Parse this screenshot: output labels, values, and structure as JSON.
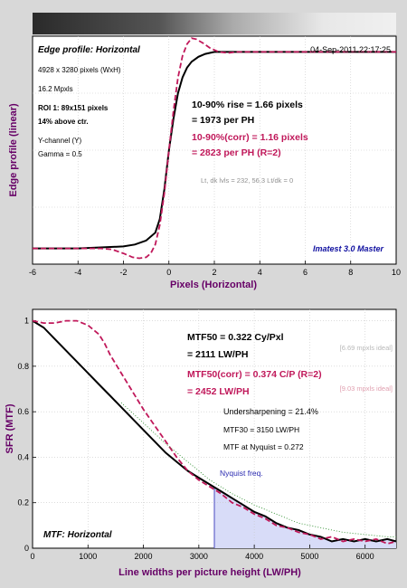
{
  "colors": {
    "background": "#d8d8d8",
    "measured": "#000000",
    "corrected": "#c0185a",
    "axis_label": "#660066",
    "nyquist_fill": "#d8dcf8",
    "nyquist_line": "#4a4ac0",
    "dotted": "#2f8f2f",
    "ideal_text": "#b8b8b8",
    "ideal_text_pink": "#e0a0b0",
    "master": "#1010a0"
  },
  "chart_data": [
    {
      "type": "line",
      "panel_title": "Edge profile: Horizontal",
      "timestamp": "04-Sep-2011 22:17:25",
      "xlabel": "Pixels (Horizontal)",
      "ylabel": "Edge profile (linear)",
      "xlim": [
        -6,
        10
      ],
      "ylim": [
        -0.08,
        1.08
      ],
      "xticks": [
        "-6",
        "-4",
        "-2",
        "0",
        "2",
        "4",
        "6",
        "8",
        "10"
      ],
      "info_lines": [
        "4928 x 3280 pixels (WxH)",
        "16.2 Mpxls"
      ],
      "roi_lines": [
        "ROI 1:  89x151 pixels",
        "14% above ctr."
      ],
      "channel_lines": [
        "Y-channel  (Y)",
        "Gamma = 0.5"
      ],
      "rise_lines": [
        "10-90% rise = 1.66 pixels",
        "= 1973 per PH"
      ],
      "corr_lines": [
        "10-90%(corr) = 1.16 pixels",
        "= 2823 per PH    (R=2)"
      ],
      "levels_text": "Lt, dk lvls = 232, 56.3   Lt/dk = 0",
      "software": "Imatest 3.0 Master",
      "series": [
        {
          "key": "measured",
          "x": [
            -6,
            -4,
            -3,
            -2,
            -1.5,
            -1,
            -0.6,
            -0.4,
            -0.2,
            0,
            0.2,
            0.4,
            0.6,
            0.8,
            1,
            1.3,
            1.6,
            2,
            2.5,
            3,
            4,
            6,
            8,
            10
          ],
          "y": [
            0,
            0,
            0.005,
            0.01,
            0.02,
            0.04,
            0.08,
            0.15,
            0.3,
            0.5,
            0.66,
            0.79,
            0.87,
            0.92,
            0.95,
            0.975,
            0.99,
            1.0,
            1.0,
            1.0,
            1.0,
            1.0,
            1.0,
            1.0
          ]
        },
        {
          "key": "corrected",
          "x": [
            -6,
            -4,
            -3,
            -2.5,
            -2,
            -1.6,
            -1.3,
            -1,
            -0.8,
            -0.6,
            -0.4,
            -0.2,
            0,
            0.2,
            0.4,
            0.6,
            0.8,
            1,
            1.2,
            1.5,
            1.8,
            2.2,
            2.6,
            3,
            4,
            6,
            8,
            10
          ],
          "y": [
            0,
            0,
            0,
            -0.005,
            -0.025,
            -0.045,
            -0.05,
            -0.045,
            -0.025,
            0.02,
            0.12,
            0.28,
            0.5,
            0.7,
            0.87,
            0.98,
            1.04,
            1.07,
            1.065,
            1.045,
            1.02,
            1.0,
            0.995,
            1.0,
            1.0,
            1.0,
            1.0,
            1.0
          ]
        }
      ]
    },
    {
      "type": "line",
      "panel_title": "MTF: Horizontal",
      "xlabel": "Line widths per picture height (LW/PH)",
      "ylabel": "SFR (MTF)",
      "xlim": [
        0,
        6560
      ],
      "ylim": [
        0,
        1.05
      ],
      "xticks": [
        "0",
        "1000",
        "2000",
        "3000",
        "4000",
        "5000",
        "6000"
      ],
      "yticks": [
        "0",
        "0.2",
        "0.4",
        "0.6",
        "0.8",
        "1"
      ],
      "mtf50_lines": [
        "MTF50 = 0.322 Cy/Pxl",
        "= 2111 LW/PH"
      ],
      "mtf50_ideal": "[6.69 mpxls ideal]",
      "mtf50corr_lines": [
        "MTF50(corr) = 0.374 C/P   (R=2)",
        "= 2452 LW/PH"
      ],
      "mtf50corr_ideal": "[9.03 mpxls ideal]",
      "undersharpening": "Undersharpening = 21.4%",
      "mtf30": "MTF30 = 3150 LW/PH",
      "nyquist_mtf": "MTF at Nyquist = 0.272",
      "nyquist_label": "Nyquist freq.",
      "nyquist_x": 3280,
      "series": [
        {
          "key": "measured",
          "x": [
            0,
            200,
            400,
            600,
            800,
            1000,
            1200,
            1400,
            1600,
            1800,
            2000,
            2200,
            2400,
            2600,
            2800,
            3000,
            3200,
            3400,
            3600,
            3800,
            4000,
            4200,
            4400,
            4600,
            4800,
            5000,
            5200,
            5400,
            5600,
            5800,
            6000,
            6200,
            6400,
            6560
          ],
          "y": [
            1.0,
            0.97,
            0.92,
            0.87,
            0.82,
            0.77,
            0.72,
            0.67,
            0.62,
            0.57,
            0.52,
            0.47,
            0.42,
            0.38,
            0.34,
            0.31,
            0.28,
            0.25,
            0.22,
            0.19,
            0.16,
            0.14,
            0.11,
            0.09,
            0.08,
            0.06,
            0.05,
            0.03,
            0.04,
            0.03,
            0.04,
            0.03,
            0.04,
            0.03
          ]
        },
        {
          "key": "corrected",
          "x": [
            0,
            200,
            400,
            600,
            800,
            1000,
            1200,
            1300,
            1400,
            1600,
            1800,
            2000,
            2200,
            2400,
            2600,
            2800,
            3000,
            3200,
            3400,
            3600,
            3800,
            4000,
            4200,
            4400,
            4600,
            4800,
            5000,
            5200,
            5400,
            5600,
            5800,
            6000,
            6200,
            6400,
            6560
          ],
          "y": [
            1.0,
            0.99,
            0.99,
            1.0,
            1.0,
            0.98,
            0.94,
            0.9,
            0.85,
            0.77,
            0.69,
            0.61,
            0.54,
            0.47,
            0.4,
            0.34,
            0.3,
            0.27,
            0.24,
            0.2,
            0.18,
            0.15,
            0.13,
            0.1,
            0.09,
            0.07,
            0.06,
            0.04,
            0.05,
            0.03,
            0.04,
            0.03,
            0.04,
            0.02,
            0.03
          ]
        },
        {
          "key": "dotted",
          "x": [
            1600,
            2000,
            2400,
            2800,
            3200,
            3600,
            4000,
            4400,
            4800,
            5200,
            5600,
            6000,
            6400,
            6560
          ],
          "y": [
            0.64,
            0.55,
            0.46,
            0.38,
            0.3,
            0.24,
            0.19,
            0.15,
            0.11,
            0.09,
            0.07,
            0.06,
            0.05,
            0.05
          ]
        }
      ]
    }
  ]
}
